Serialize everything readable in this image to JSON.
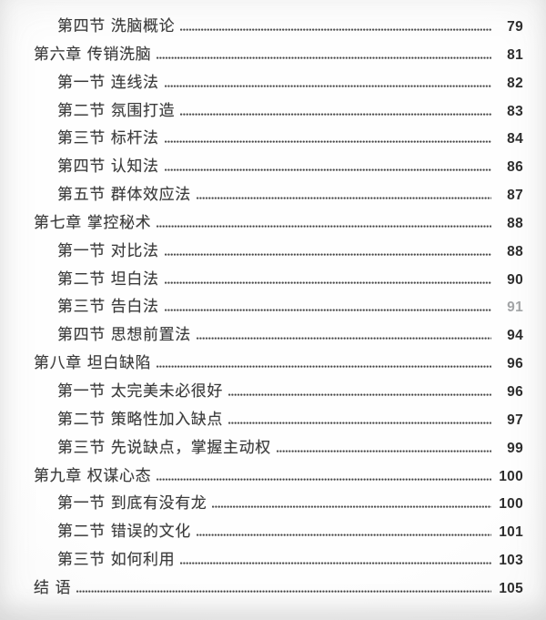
{
  "document": {
    "kind": "book-table-of-contents",
    "language": "zh",
    "colors": {
      "paper": "#fdfdfd",
      "edge_vignette": "#e7e7e7",
      "text": "#3b3b3b",
      "page_number": "#2e2e2e",
      "faded_page_number": "#a2a4a6",
      "leader_dots": "#4a4a4a"
    }
  },
  "toc": {
    "entries": [
      {
        "level": "section",
        "label": "第四节 洗脑概论",
        "page": "79",
        "dim": false
      },
      {
        "level": "chapter",
        "label": "第六章 传销洗脑",
        "page": "81",
        "dim": false
      },
      {
        "level": "section",
        "label": "第一节 连线法",
        "page": "82",
        "dim": false
      },
      {
        "level": "section",
        "label": "第二节 氛围打造",
        "page": "83",
        "dim": false
      },
      {
        "level": "section",
        "label": "第三节 标杆法",
        "page": "84",
        "dim": false
      },
      {
        "level": "section",
        "label": "第四节 认知法",
        "page": "86",
        "dim": false
      },
      {
        "level": "section",
        "label": "第五节 群体效应法",
        "page": "87",
        "dim": false
      },
      {
        "level": "chapter",
        "label": "第七章 掌控秘术",
        "page": "88",
        "dim": false
      },
      {
        "level": "section",
        "label": "第一节 对比法",
        "page": "88",
        "dim": false
      },
      {
        "level": "section",
        "label": "第二节 坦白法",
        "page": "90",
        "dim": false
      },
      {
        "level": "section",
        "label": "第三节 告白法",
        "page": "91",
        "dim": true
      },
      {
        "level": "section",
        "label": "第四节 思想前置法",
        "page": "94",
        "dim": false
      },
      {
        "level": "chapter",
        "label": "第八章 坦白缺陷",
        "page": "96",
        "dim": false
      },
      {
        "level": "section",
        "label": "第一节 太完美未必很好",
        "page": "96",
        "dim": false
      },
      {
        "level": "section",
        "label": "第二节 策略性加入缺点",
        "page": "97",
        "dim": false
      },
      {
        "level": "section",
        "label": "第三节 先说缺点，掌握主动权",
        "page": "99",
        "dim": false
      },
      {
        "level": "chapter",
        "label": "第九章 权谋心态",
        "page": "100",
        "dim": false
      },
      {
        "level": "section",
        "label": "第一节 到底有没有龙",
        "page": "100",
        "dim": false
      },
      {
        "level": "section",
        "label": "第二节 错误的文化",
        "page": "101",
        "dim": false
      },
      {
        "level": "section",
        "label": "第三节 如何利用",
        "page": "103",
        "dim": false
      },
      {
        "level": "chapter",
        "label": "结 语",
        "page": "105",
        "dim": false
      }
    ]
  }
}
